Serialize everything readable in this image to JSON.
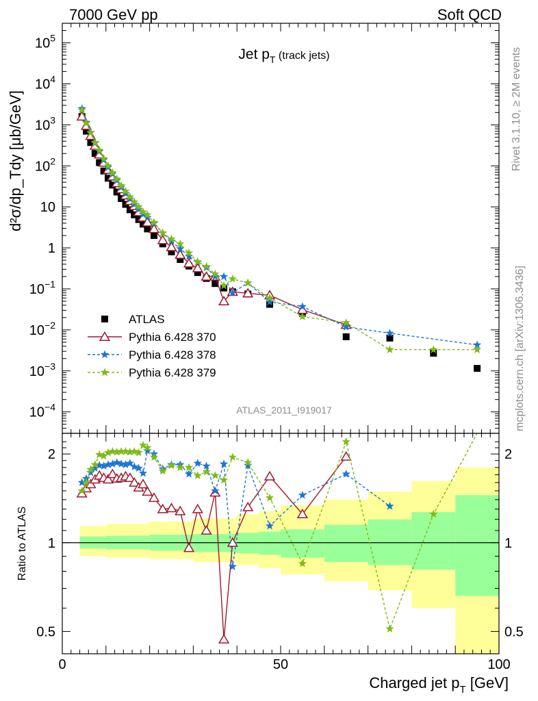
{
  "header": {
    "left": "7000 GeV pp",
    "right": "Soft QCD"
  },
  "side_labels": {
    "rivet": "Rivet 3.1.10, ≥ 2M events",
    "mcplots": "mcplots.cern.ch [arXiv:1306.3436]"
  },
  "chart_data": [
    {
      "type": "scatter",
      "panel": "main",
      "title": "Jet p_T (track jets)",
      "ylabel": "d²σ/dp_Tdy [μb/GeV]",
      "xlabel": "",
      "xlim": [
        0,
        100
      ],
      "ylim": [
        3e-05,
        300000
      ],
      "yscale": "log",
      "watermark": "ATLAS_2011_I919017",
      "legend_position": "middle-left",
      "x": [
        4.5,
        5.5,
        6.5,
        7.5,
        8.5,
        9.5,
        10.5,
        11.5,
        12.5,
        13.5,
        14.5,
        15.5,
        16.5,
        17.5,
        18.5,
        19.5,
        21,
        23,
        25,
        27,
        29,
        31,
        33,
        35,
        37,
        39,
        42.5,
        47.5,
        55,
        65,
        75,
        85,
        95
      ],
      "yticks": [
        "10^-4",
        "10^-3",
        "10^-2",
        "10^-1",
        "1",
        "10",
        "10^2",
        "10^3",
        "10^4",
        "10^5"
      ],
      "series": [
        {
          "name": "ATLAS",
          "marker": "filled-square",
          "color": "#000000",
          "values": [
            1600,
            700,
            370,
            200,
            120,
            75,
            50,
            34,
            23,
            16,
            11.5,
            8.5,
            6.4,
            4.9,
            3.8,
            2.9,
            2.0,
            1.25,
            0.8,
            0.52,
            0.36,
            0.25,
            0.18,
            0.135,
            0.105,
            0.085,
            0.075,
            0.042,
            0.025,
            0.0068,
            0.0063,
            0.0027,
            0.00115
          ]
        },
        {
          "name": "Pythia 6.428 370",
          "marker": "open-triangle",
          "line": "solid",
          "color": "#a0162d",
          "values": [
            1600,
            950,
            540,
            310,
            190,
            120,
            80,
            55,
            38,
            27,
            19,
            14,
            10.5,
            7.5,
            5.5,
            4.2,
            2.9,
            1.55,
            1.05,
            0.68,
            0.42,
            0.32,
            0.2,
            0.2,
            0.05,
            0.085,
            0.078,
            0.07,
            0.031,
            0.0133,
            null,
            null,
            null
          ]
        },
        {
          "name": "Pythia 6.428 378",
          "marker": "star",
          "line": "dashed",
          "color": "#1d74d4",
          "values": [
            2500,
            1150,
            650,
            360,
            225,
            140,
            92,
            63,
            44,
            30,
            21,
            15.5,
            11.5,
            8.7,
            6.6,
            5.5,
            4.0,
            2.3,
            1.45,
            0.95,
            0.62,
            0.45,
            0.33,
            0.2,
            0.2,
            0.08,
            0.14,
            0.048,
            0.037,
            0.0118,
            0.0083,
            null,
            0.0043
          ]
        },
        {
          "name": "Pythia 6.428 379",
          "marker": "star",
          "line": "dashed",
          "color": "#7ebb14",
          "values": [
            2300,
            1100,
            640,
            370,
            240,
            150,
            100,
            68,
            48,
            33,
            24,
            17.5,
            13.2,
            10,
            7.5,
            6.4,
            4.2,
            2.3,
            1.65,
            1.25,
            0.75,
            0.46,
            0.35,
            0.23,
            0.12,
            0.175,
            0.14,
            0.06,
            0.021,
            0.015,
            0.0033,
            0.0033,
            0.0033
          ]
        }
      ]
    },
    {
      "type": "line",
      "panel": "ratio",
      "ylabel": "Ratio to ATLAS",
      "xlabel": "Charged jet p_T [GeV]",
      "xlim": [
        0,
        100
      ],
      "ylim": [
        0.42,
        2.35
      ],
      "yscale": "log",
      "yticks": [
        "0.5",
        "1",
        "2"
      ],
      "xticks": [
        "0",
        "50",
        "100"
      ],
      "x": [
        4.5,
        5.5,
        6.5,
        7.5,
        8.5,
        9.5,
        10.5,
        11.5,
        12.5,
        13.5,
        14.5,
        15.5,
        16.5,
        17.5,
        18.5,
        19.5,
        21,
        23,
        25,
        27,
        29,
        31,
        33,
        35,
        37,
        39,
        42.5,
        47.5,
        55,
        65,
        75,
        85,
        95
      ],
      "band_bins": [
        [
          4,
          10
        ],
        [
          10,
          20
        ],
        [
          20,
          30
        ],
        [
          30,
          40
        ],
        [
          40,
          45
        ],
        [
          45,
          50
        ],
        [
          50,
          60
        ],
        [
          60,
          70
        ],
        [
          70,
          80
        ],
        [
          80,
          90
        ],
        [
          90,
          100
        ]
      ],
      "band_inner": [
        [
          0.955,
          1.05
        ],
        [
          0.95,
          1.055
        ],
        [
          0.94,
          1.065
        ],
        [
          0.93,
          1.07
        ],
        [
          0.92,
          1.08
        ],
        [
          0.91,
          1.09
        ],
        [
          0.89,
          1.11
        ],
        [
          0.86,
          1.15
        ],
        [
          0.84,
          1.2
        ],
        [
          0.81,
          1.27
        ],
        [
          0.66,
          1.45
        ]
      ],
      "band_outer": [
        [
          0.9,
          1.14
        ],
        [
          0.89,
          1.16
        ],
        [
          0.88,
          1.18
        ],
        [
          0.86,
          1.21
        ],
        [
          0.84,
          1.25
        ],
        [
          0.82,
          1.28
        ],
        [
          0.78,
          1.34
        ],
        [
          0.74,
          1.4
        ],
        [
          0.69,
          1.49
        ],
        [
          0.6,
          1.62
        ],
        [
          0.38,
          1.8
        ]
      ],
      "series": [
        {
          "name": "Pythia 6.428 370",
          "color": "#a0162d",
          "values": [
            1.47,
            1.53,
            1.58,
            1.64,
            1.69,
            1.66,
            1.64,
            1.71,
            1.65,
            1.66,
            1.68,
            1.66,
            1.6,
            1.54,
            1.58,
            1.49,
            1.42,
            1.3,
            1.31,
            1.28,
            0.96,
            1.3,
            1.1,
            1.48,
            0.47,
            1.0,
            1.32,
            1.68,
            1.25,
            1.96,
            null,
            null,
            null
          ]
        },
        {
          "name": "Pythia 6.428 378",
          "color": "#1d74d4",
          "values": [
            1.6,
            1.65,
            1.73,
            1.79,
            1.83,
            1.82,
            1.84,
            1.85,
            1.87,
            1.85,
            1.84,
            1.86,
            1.81,
            1.79,
            1.72,
            2.05,
            2.0,
            1.78,
            1.84,
            1.84,
            1.71,
            1.86,
            1.82,
            1.5,
            1.85,
            0.83,
            1.83,
            1.14,
            1.45,
            1.71,
            1.33,
            null,
            null
          ]
        },
        {
          "name": "Pythia 6.428 379",
          "color": "#7ebb14",
          "values": [
            1.5,
            1.6,
            1.77,
            1.84,
            1.99,
            1.97,
            2.02,
            2.04,
            2.03,
            2.04,
            2.04,
            2.03,
            2.04,
            2.02,
            2.14,
            2.1,
            1.95,
            1.75,
            1.83,
            1.8,
            1.8,
            1.69,
            1.74,
            1.69,
            1.63,
            1.95,
            1.87,
            1.42,
            0.85,
            2.2,
            0.51,
            1.25,
            2.8
          ]
        }
      ]
    }
  ]
}
